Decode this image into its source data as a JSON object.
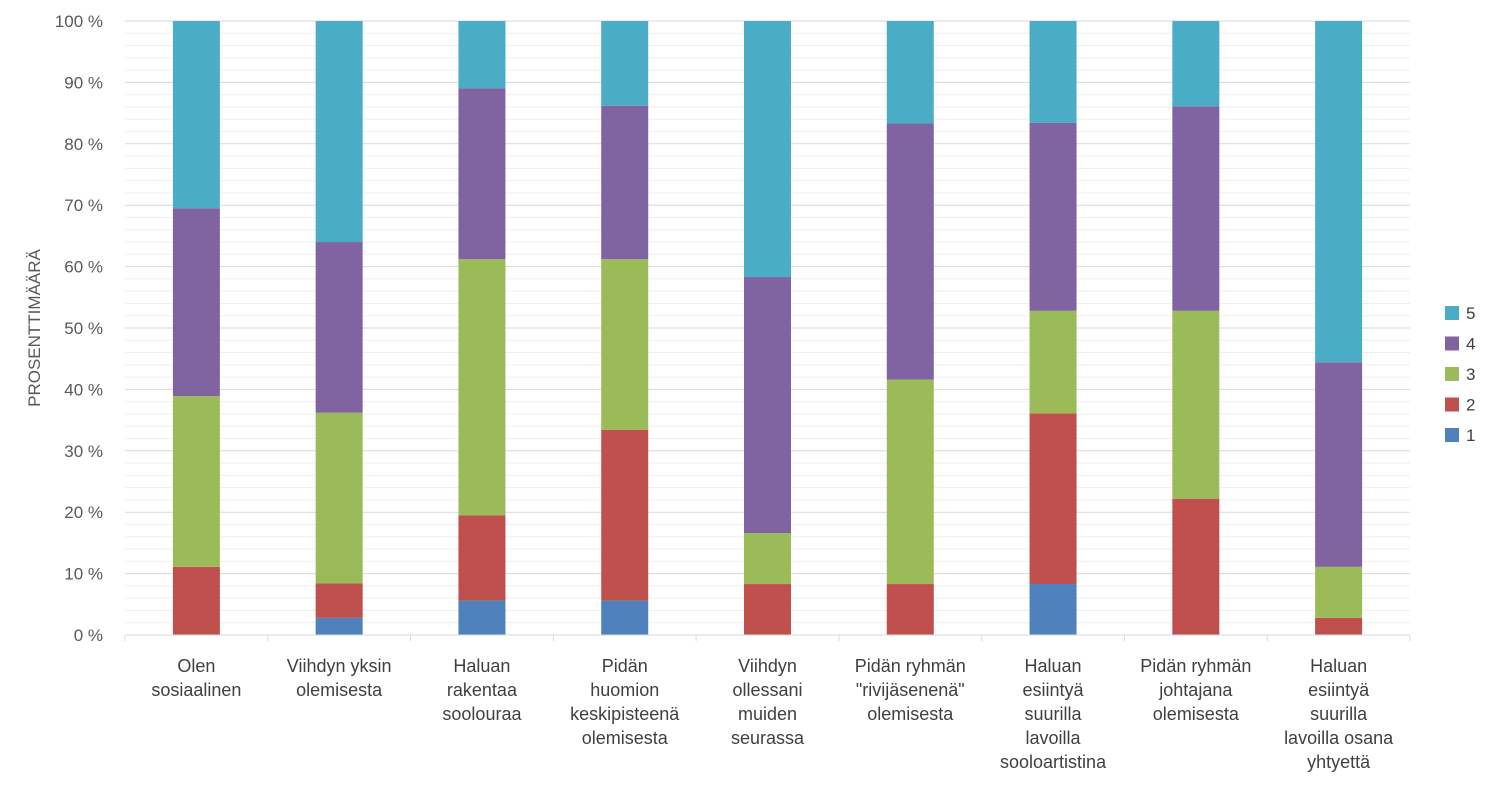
{
  "chart_data": {
    "type": "bar",
    "stacked": true,
    "percent_stacked": true,
    "title": "",
    "xlabel": "",
    "ylabel": "PROSENTTIMÄÄRÄ",
    "ylim": [
      0,
      100
    ],
    "y_ticks": [
      "0 %",
      "10 %",
      "20 %",
      "30 %",
      "40 %",
      "50 %",
      "60 %",
      "70 %",
      "80 %",
      "90 %",
      "100 %"
    ],
    "grid": true,
    "legend_position": "right",
    "categories": [
      [
        "Olen",
        "sosiaalinen"
      ],
      [
        "Viihdyn yksin",
        "olemisesta"
      ],
      [
        "Haluan",
        "rakentaa",
        "soolouraa"
      ],
      [
        "Pidän",
        "huomion",
        "keskipisteenä",
        "olemisesta"
      ],
      [
        "Viihdyn",
        "ollessani",
        "muiden",
        "seurassa"
      ],
      [
        "Pidän ryhmän",
        "\"rivijäsenenä\"",
        "olemisesta"
      ],
      [
        "Haluan",
        "esiintyä",
        "suurilla",
        "lavoilla",
        "sooloartistina"
      ],
      [
        "Pidän ryhmän",
        "johtajana",
        "olemisesta"
      ],
      [
        "Haluan",
        "esiintyä",
        "suurilla",
        "lavoilla osana",
        "yhtyettä"
      ]
    ],
    "series": [
      {
        "name": "1",
        "color": "#4F81BD",
        "values": [
          0,
          2.8,
          5.6,
          5.6,
          0,
          0,
          8.3,
          0,
          0
        ]
      },
      {
        "name": "2",
        "color": "#C0504D",
        "values": [
          11.1,
          5.6,
          13.9,
          27.8,
          8.3,
          8.3,
          27.8,
          22.2,
          2.8
        ]
      },
      {
        "name": "3",
        "color": "#9BBB59",
        "values": [
          27.8,
          27.8,
          41.7,
          27.8,
          8.3,
          33.3,
          16.7,
          30.6,
          8.3
        ]
      },
      {
        "name": "4",
        "color": "#8064A2",
        "values": [
          30.6,
          27.8,
          27.8,
          25.0,
          41.7,
          41.7,
          30.6,
          33.3,
          33.3
        ]
      },
      {
        "name": "5",
        "color": "#4BACC6",
        "values": [
          30.5,
          36.0,
          11.0,
          13.8,
          41.7,
          16.7,
          16.6,
          13.9,
          55.6
        ]
      }
    ]
  }
}
